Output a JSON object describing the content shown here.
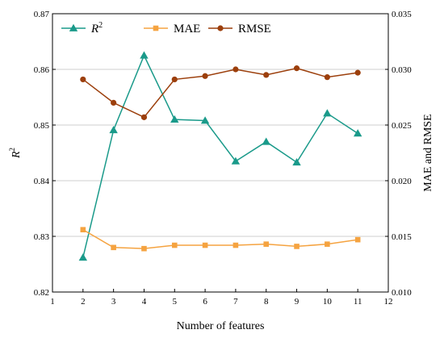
{
  "chart_data": {
    "type": "line",
    "x": [
      2,
      3,
      4,
      5,
      6,
      7,
      8,
      9,
      10,
      11
    ],
    "xlabel": "Number of features",
    "ylabel_left": "R",
    "ylabel_left_sup": "2",
    "ylabel_right": "MAE and RMSE",
    "xlim": [
      1,
      12
    ],
    "xticks": [
      "1",
      "2",
      "3",
      "4",
      "5",
      "6",
      "7",
      "8",
      "9",
      "10",
      "11",
      "12"
    ],
    "ylim_left": [
      0.82,
      0.87
    ],
    "yticks_left": [
      "0.82",
      "0.83",
      "0.84",
      "0.85",
      "0.86",
      "0.87"
    ],
    "ylim_right": [
      0.01,
      0.035
    ],
    "yticks_right": [
      "0.010",
      "0.015",
      "0.020",
      "0.025",
      "0.030",
      "0.035"
    ],
    "grid": true,
    "legend_position": "top",
    "series": [
      {
        "name": "R",
        "name_sup": "2",
        "axis": "left",
        "marker": "triangle",
        "color": "#1a9a8a",
        "values": [
          0.8262,
          0.8491,
          0.8625,
          0.851,
          0.8508,
          0.8435,
          0.847,
          0.8433,
          0.8521,
          0.8485
        ]
      },
      {
        "name": "MAE",
        "axis": "right",
        "marker": "square",
        "color": "#f5a340",
        "values": [
          0.0156,
          0.014,
          0.0139,
          0.0142,
          0.0142,
          0.0142,
          0.0143,
          0.0141,
          0.0143,
          0.0147
        ]
      },
      {
        "name": "RMSE",
        "axis": "right",
        "marker": "circle",
        "color": "#9c3f0c",
        "values": [
          0.0291,
          0.027,
          0.0257,
          0.0291,
          0.0294,
          0.03,
          0.0295,
          0.0301,
          0.0293,
          0.0297
        ]
      }
    ]
  }
}
